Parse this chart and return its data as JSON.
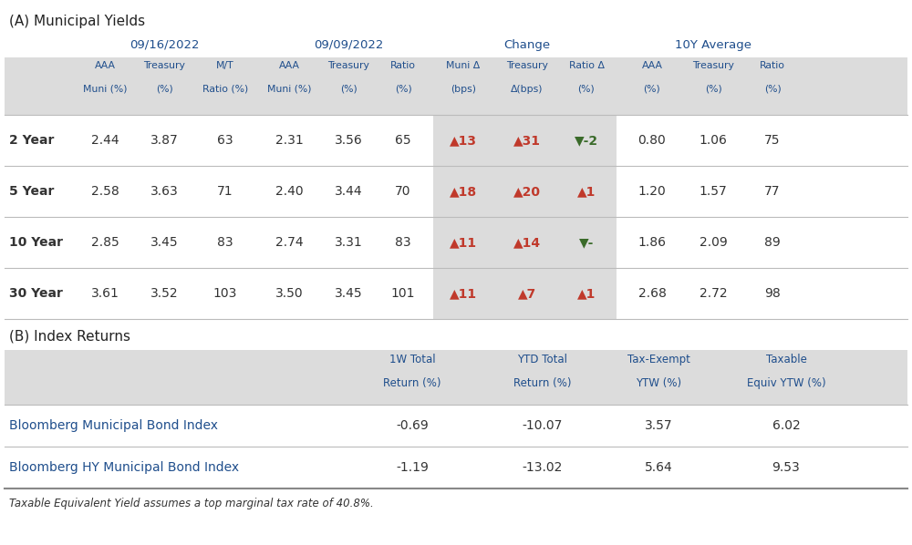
{
  "title_a": "(A) Municipal Yields",
  "title_b": "(B) Index Returns",
  "footnote": "Taxable Equivalent Yield assumes a top marginal tax rate of 40.8%.",
  "header_groups": [
    "09/16/2022",
    "09/09/2022",
    "Change",
    "10Y Average"
  ],
  "subheaders_line1": [
    "AAA",
    "Treasury",
    "M/T",
    "AAA",
    "Treasury",
    "Ratio",
    "Muni Δ",
    "Treasury",
    "Ratio Δ",
    "AAA",
    "Treasury",
    "Ratio"
  ],
  "subheaders_line2": [
    "Muni (%)",
    "(%)",
    "Ratio (%)",
    "Muni (%)",
    "(%)",
    "(%)",
    "(bps)",
    "Δ(bps)",
    "(%)",
    "(%)",
    "(%)",
    "(%)"
  ],
  "row_labels": [
    "2 Year",
    "5 Year",
    "10 Year",
    "30 Year"
  ],
  "table_data": [
    [
      "2.44",
      "3.87",
      "63",
      "2.31",
      "3.56",
      "65",
      "▲13",
      "▲31",
      "▼-2",
      "0.80",
      "1.06",
      "75"
    ],
    [
      "2.58",
      "3.63",
      "71",
      "2.40",
      "3.44",
      "70",
      "▲18",
      "▲20",
      "▲1",
      "1.20",
      "1.57",
      "77"
    ],
    [
      "2.85",
      "3.45",
      "83",
      "2.74",
      "3.31",
      "83",
      "▲11",
      "▲14",
      "▼-",
      "1.86",
      "2.09",
      "89"
    ],
    [
      "3.61",
      "3.52",
      "103",
      "3.50",
      "3.45",
      "101",
      "▲11",
      "▲7",
      "▲1",
      "2.68",
      "2.72",
      "98"
    ]
  ],
  "change_colors": [
    [
      "red",
      "red",
      "green"
    ],
    [
      "red",
      "red",
      "red"
    ],
    [
      "red",
      "red",
      "green"
    ],
    [
      "red",
      "red",
      "red"
    ]
  ],
  "index_headers_line1": [
    "1W Total",
    "YTD Total",
    "Tax-Exempt",
    "Taxable"
  ],
  "index_headers_line2": [
    "Return (%)",
    "Return (%)",
    "YTW (%)",
    "Equiv YTW (%)"
  ],
  "index_row_labels": [
    "Bloomberg Municipal Bond Index",
    "Bloomberg HY Municipal Bond Index"
  ],
  "index_data": [
    [
      "-0.69",
      "-10.07",
      "3.57",
      "6.02"
    ],
    [
      "-1.19",
      "-13.02",
      "5.64",
      "9.53"
    ]
  ],
  "bg_color_light": "#dcdcdc",
  "bg_color_white": "#ffffff",
  "header_color": "#1f4e8c",
  "text_color_dark": "#333333",
  "blue_text": "#1f4e8c",
  "red_color": "#c0392b",
  "green_color": "#3a6b2a",
  "line_color": "#bbbbbb",
  "title_color": "#222222"
}
